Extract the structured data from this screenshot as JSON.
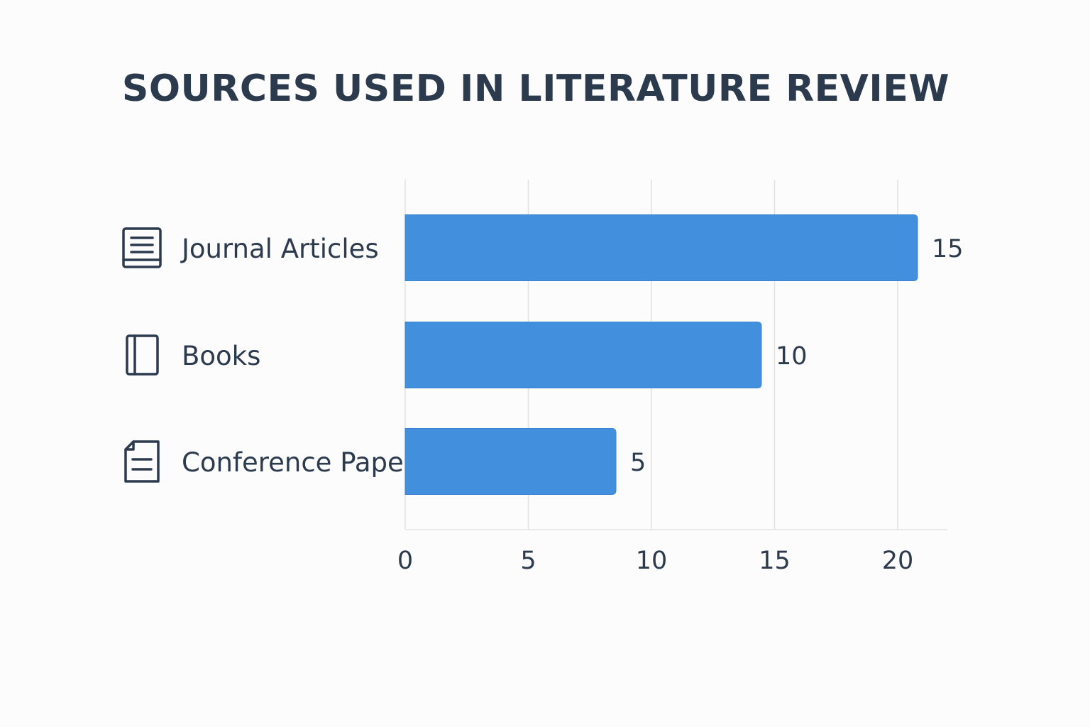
{
  "chart_data": {
    "type": "bar",
    "orientation": "horizontal",
    "title": "SOURCES USED IN LITERATURE REVIEW",
    "categories": [
      "Journal Articles",
      "Books",
      "Conference Pape"
    ],
    "icons": [
      "journal-icon",
      "book-icon",
      "document-icon"
    ],
    "values": [
      15,
      10,
      5
    ],
    "xlim": [
      0,
      22
    ],
    "xticks": [
      0,
      5,
      10,
      15,
      20
    ],
    "xlabel": "",
    "ylabel": "",
    "grid": "vertical",
    "legend": "none",
    "bar_color": "#428fdd"
  }
}
